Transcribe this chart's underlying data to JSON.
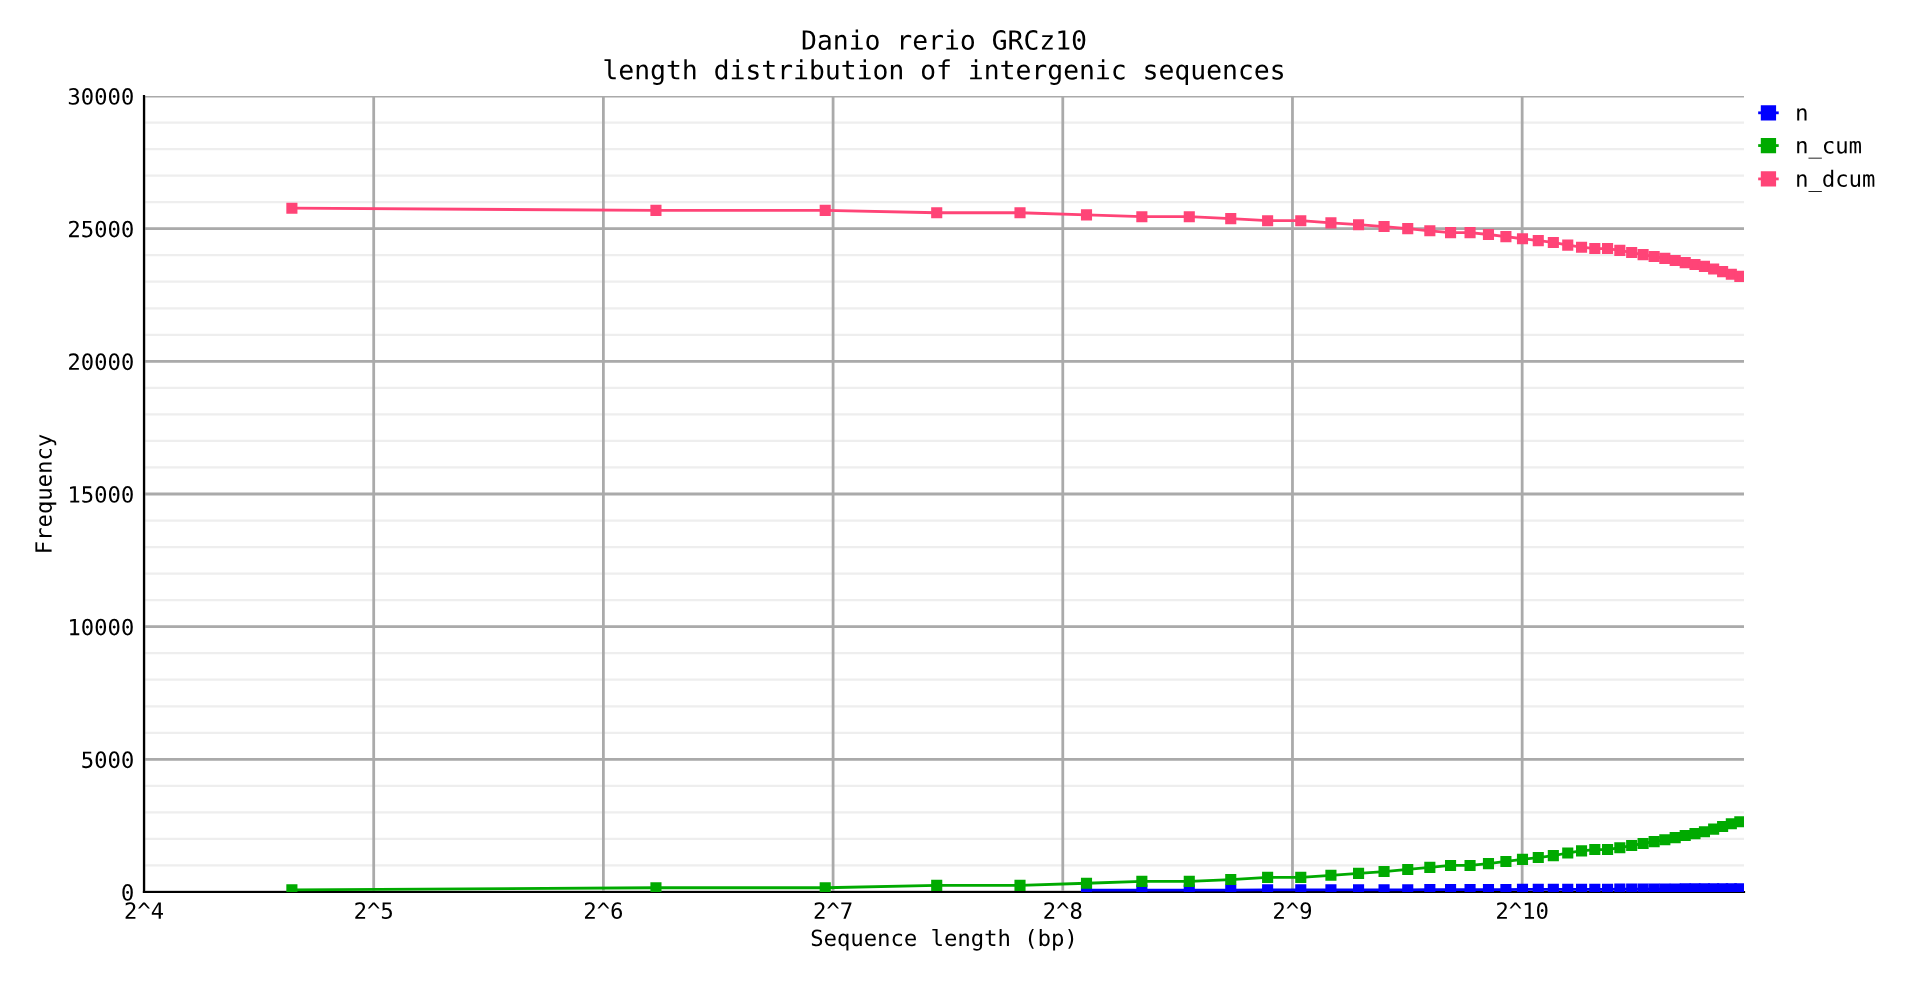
{
  "chart_data": {
    "type": "line",
    "title": "Danio rerio GRCz10\nlength distribution of intergenic sequences",
    "xlabel": "Sequence length (bp)",
    "ylabel": "Frequency",
    "x": [
      25,
      75,
      125,
      175,
      225,
      275,
      325,
      375,
      425,
      475,
      525,
      575,
      625,
      675,
      725,
      775,
      825,
      875,
      925,
      975,
      1025,
      1075,
      1125,
      1175,
      1225,
      1275,
      1325,
      1375,
      1425,
      1475,
      1525,
      1575,
      1625,
      1675,
      1725,
      1775,
      1825,
      1875,
      1925,
      1975
    ],
    "series": [
      {
        "name": "n",
        "color": "#0000ff",
        "values": [
          null,
          null,
          null,
          null,
          null,
          70,
          70,
          70,
          70,
          80,
          80,
          80,
          80,
          80,
          80,
          90,
          90,
          90,
          90,
          90,
          100,
          100,
          100,
          100,
          100,
          100,
          100,
          110,
          110,
          110,
          110,
          110,
          110,
          120,
          120,
          120,
          120,
          120,
          120,
          120
        ]
      },
      {
        "name": "n_cum",
        "color": "#00aa00",
        "values": [
          80,
          160,
          160,
          250,
          250,
          330,
          400,
          400,
          470,
          550,
          550,
          630,
          700,
          770,
          850,
          930,
          1000,
          1000,
          1070,
          1150,
          1230,
          1300,
          1370,
          1470,
          1550,
          1600,
          1600,
          1670,
          1750,
          1830,
          1900,
          1970,
          2050,
          2130,
          2200,
          2270,
          2370,
          2470,
          2570,
          2650
        ]
      },
      {
        "name": "n_dcum",
        "color": "#ff4477",
        "values": [
          25770,
          25690,
          25690,
          25600,
          25600,
          25520,
          25450,
          25450,
          25380,
          25300,
          25300,
          25220,
          25150,
          25080,
          25000,
          24920,
          24850,
          24850,
          24780,
          24700,
          24620,
          24550,
          24480,
          24380,
          24300,
          24250,
          24250,
          24180,
          24100,
          24020,
          23950,
          23880,
          23800,
          23720,
          23650,
          23580,
          23480,
          23380,
          23280,
          23200
        ]
      }
    ],
    "log": "x",
    "xlim": [
      16,
      2000
    ],
    "xticks": [
      {
        "value": 16,
        "label": "2^4"
      },
      {
        "value": 32,
        "label": "2^5"
      },
      {
        "value": 64,
        "label": "2^6"
      },
      {
        "value": 128,
        "label": "2^7"
      },
      {
        "value": 256,
        "label": "2^8"
      },
      {
        "value": 512,
        "label": "2^9"
      },
      {
        "value": 1024,
        "label": "2^10"
      }
    ],
    "ylim": [
      0,
      30000
    ],
    "yticks": [
      0,
      5000,
      10000,
      15000,
      20000,
      25000,
      30000
    ],
    "grid": true,
    "legend": "top right",
    "marker": "square",
    "line_style": "solid"
  }
}
